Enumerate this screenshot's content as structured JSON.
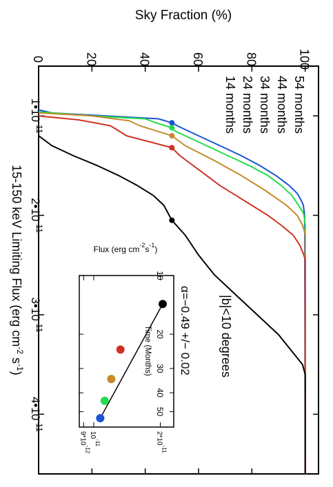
{
  "chart_data": [
    {
      "type": "line",
      "title": "",
      "xlabel": "15-150 keV Limiting Flux (erg cm^-2 s^-1)",
      "xlabel_parts": [
        "15-150 keV Limiting Flux (erg cm",
        "-2",
        " s",
        "-1",
        ")"
      ],
      "ylabel": "Sky Fraction (%)",
      "xlim": [
        5e-12,
        4.6e-11
      ],
      "ylim": [
        0,
        105
      ],
      "x_ticks": [
        {
          "value": 1e-11,
          "base": "1•10",
          "exp": "-11"
        },
        {
          "value": 2e-11,
          "base": "2•10",
          "exp": "-11"
        },
        {
          "value": 3e-11,
          "base": "3•10",
          "exp": "-11"
        },
        {
          "value": 4e-11,
          "base": "4•10",
          "exp": "-11"
        }
      ],
      "y_ticks": [
        {
          "value": 0,
          "label": "0"
        },
        {
          "value": 20,
          "label": "20"
        },
        {
          "value": 40,
          "label": "40"
        },
        {
          "value": 60,
          "label": "60"
        },
        {
          "value": 80,
          "label": "80"
        },
        {
          "value": 100,
          "label": "100"
        }
      ],
      "annotation": "|b|<10 degrees",
      "series": [
        {
          "name": "54 months",
          "color": "#1a52d8",
          "x": [
            9.4e-12,
            9.7e-12,
            1e-11,
            1.03e-11,
            1.07e-11,
            1.1e-11,
            1.15e-11,
            1.2e-11,
            1.3e-11,
            1.4e-11,
            1.5e-11,
            1.6e-11,
            1.7e-11,
            1.78e-11,
            1.85e-11,
            1.9e-11,
            2e-11,
            4.6e-11
          ],
          "y": [
            0,
            5,
            25,
            45,
            50,
            52,
            56,
            60,
            68,
            76,
            83,
            89,
            94,
            97,
            98.5,
            99.3,
            99.8,
            100
          ],
          "marker": {
            "x": 1.07e-11,
            "y": 50
          }
        },
        {
          "name": "44 months",
          "color": "#22dd4a",
          "x": [
            9.6e-12,
            1e-11,
            1.03e-11,
            1.07e-11,
            1.12e-11,
            1.15e-11,
            1.2e-11,
            1.3e-11,
            1.4e-11,
            1.5e-11,
            1.6e-11,
            1.7e-11,
            1.8e-11,
            1.9e-11,
            1.96e-11,
            2e-11,
            2.1e-11,
            4.6e-11
          ],
          "y": [
            0,
            20,
            40,
            44,
            50,
            51,
            55,
            63,
            71,
            79,
            86,
            91,
            95,
            97.5,
            99,
            99.6,
            100,
            100
          ],
          "marker": {
            "x": 1.12e-11,
            "y": 50
          }
        },
        {
          "name": "34 months",
          "color": "#c58a2a",
          "x": [
            9.7e-12,
            1e-11,
            1.05e-11,
            1.1e-11,
            1.2e-11,
            1.3e-11,
            1.45e-11,
            1.6e-11,
            1.75e-11,
            1.9e-11,
            2e-11,
            2.1e-11,
            2.15e-11,
            2.2e-11,
            4.6e-11
          ],
          "y": [
            0,
            20,
            34,
            38,
            50,
            55,
            66,
            76,
            85,
            93,
            97,
            99,
            99.6,
            100,
            100
          ],
          "marker": {
            "x": 1.2e-11,
            "y": 50
          }
        },
        {
          "name": "24 months",
          "color": "#cc3322",
          "x": [
            1e-11,
            1.04e-11,
            1.1e-11,
            1.2e-11,
            1.32e-11,
            1.4e-11,
            1.5e-11,
            1.6e-11,
            1.7e-11,
            1.8e-11,
            1.9e-11,
            2e-11,
            2.1e-11,
            2.2e-11,
            2.3e-11,
            2.4e-11,
            2.45e-11,
            2.5e-11,
            4.6e-11
          ],
          "y": [
            0,
            15,
            27,
            33,
            50,
            53,
            58,
            63,
            68,
            74,
            80,
            86,
            91,
            95.5,
            98,
            99.5,
            100,
            100,
            100
          ],
          "marker": {
            "x": 1.32e-11,
            "y": 50
          }
        },
        {
          "name": "14 months",
          "color": "#000000",
          "x": [
            1.2e-11,
            1.3e-11,
            1.4e-11,
            1.5e-11,
            1.6e-11,
            1.7e-11,
            1.8e-11,
            1.9e-11,
            2.05e-11,
            2.2e-11,
            2.4e-11,
            2.6e-11,
            2.8e-11,
            3e-11,
            3.2e-11,
            3.4e-11,
            3.5e-11,
            3.6e-11,
            4.6e-11
          ],
          "y": [
            0,
            5,
            13,
            22,
            30,
            37,
            43,
            47,
            50,
            55,
            60,
            66,
            74,
            82,
            90,
            96,
            99,
            100,
            100
          ],
          "marker": {
            "x": 2.05e-11,
            "y": 50
          }
        }
      ]
    },
    {
      "type": "scatter",
      "title": "",
      "xlabel": "Time (Months)",
      "ylabel": "Flux (erg cm^-2 s^-1)",
      "ylabel_parts": [
        "Flux (erg cm",
        "-2",
        "s",
        "-1",
        ")"
      ],
      "log_x": true,
      "log_y": true,
      "xlim": [
        10,
        60
      ],
      "ylim": [
        8.6e-12,
        2.3e-11
      ],
      "x_ticks": [
        {
          "value": 10,
          "label": "10"
        },
        {
          "value": 20,
          "label": "20"
        },
        {
          "value": 30,
          "label": "30"
        },
        {
          "value": 40,
          "label": "40"
        },
        {
          "value": 50,
          "label": "50"
        }
      ],
      "y_ticks": [
        {
          "value": 9e-12,
          "base": "9*10",
          "exp": "-12"
        },
        {
          "value": 1e-11,
          "base": "10",
          "exp": "-11"
        },
        {
          "value": 2e-11,
          "base": "2*10",
          "exp": "-11"
        }
      ],
      "annotation": "α=−0.49 +/− 0.02",
      "points": [
        {
          "x": 14,
          "y": 2.05e-11,
          "color": "#000000"
        },
        {
          "x": 24,
          "y": 1.32e-11,
          "color": "#cc3322"
        },
        {
          "x": 34,
          "y": 1.2e-11,
          "color": "#c58a2a"
        },
        {
          "x": 44,
          "y": 1.12e-11,
          "color": "#22dd4a"
        },
        {
          "x": 54,
          "y": 1.07e-11,
          "color": "#1a52d8"
        }
      ],
      "fit_line": {
        "x": [
          14,
          54
        ],
        "y": [
          2.05e-11,
          1.07e-11
        ]
      }
    }
  ]
}
